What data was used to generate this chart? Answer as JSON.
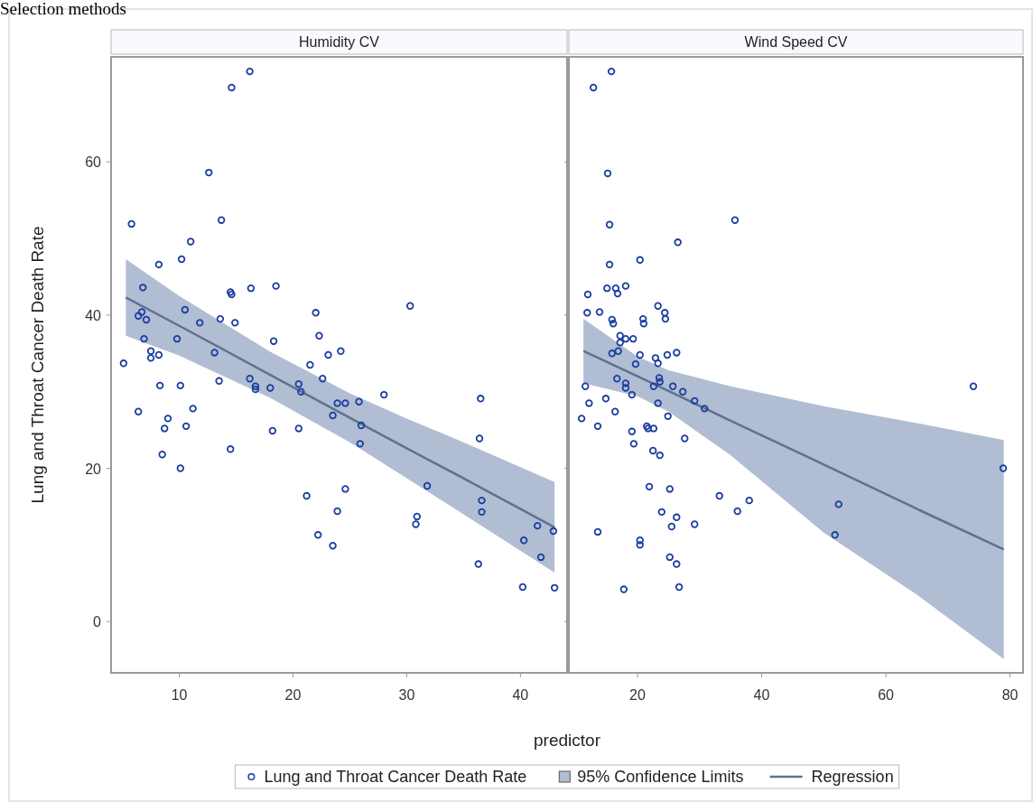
{
  "chart_data": [
    {
      "type": "scatter",
      "title": "Humidity CV",
      "xlabel": "predictor",
      "ylabel": "Lung and Throat Cancer Death Rate",
      "annotations": [
        "Selection methods",
        "95% Confidence Limits"
      ],
      "legend": "bottom",
      "grid": false,
      "xlim": [
        4,
        44.1
      ],
      "ylim": [
        -6.7,
        73.7
      ],
      "xticks": [
        10,
        20,
        30,
        40
      ],
      "yticks": [
        0,
        20,
        40,
        60
      ],
      "series": [
        {
          "name": "Regression",
          "type": "line",
          "color": "#5f7191",
          "x": [
            5.3,
            10,
            18,
            25,
            30,
            35,
            43
          ],
          "values": [
            42.3,
            38.6,
            32.2,
            26.6,
            22.6,
            18.7,
            12.3
          ],
          "lower": [
            37.3,
            34.7,
            29.2,
            23.4,
            18.7,
            14.0,
            6.4
          ],
          "upper": [
            47.3,
            42.5,
            35.2,
            29.8,
            26.5,
            23.4,
            18.2
          ]
        },
        {
          "name": "Lung and Throat Cancer Death Rate",
          "type": "scatter",
          "marker": "circle",
          "color": "#1a3ea0",
          "x": [
            5.1,
            5.8,
            6.4,
            6.4,
            6.7,
            6.8,
            6.9,
            7.1,
            7.5,
            7.5,
            8.2,
            8.2,
            8.3,
            8.5,
            8.7,
            9.0,
            9.8,
            10.1,
            10.1,
            10.2,
            10.5,
            10.6,
            11.0,
            11.2,
            11.8,
            12.6,
            13.1,
            13.7,
            13.5,
            13.6,
            14.6,
            14.5,
            14.6,
            14.5,
            14.9,
            16.2,
            16.2,
            16.3,
            16.7,
            16.7,
            18.0,
            18.2,
            18.3,
            18.5,
            20.5,
            20.7,
            20.5,
            21.2,
            21.5,
            22.0,
            22.2,
            22.3,
            22.6,
            23.1,
            23.5,
            23.5,
            23.9,
            23.9,
            24.2,
            24.6,
            24.6,
            25.8,
            26.0,
            25.9,
            28.0,
            30.3,
            30.8,
            30.9,
            31.8,
            36.5,
            36.4,
            36.6,
            36.6,
            36.3,
            40.3,
            40.2,
            41.5,
            41.8,
            42.9,
            43.0
          ],
          "values": [
            33.7,
            51.9,
            27.4,
            39.9,
            40.4,
            43.6,
            36.9,
            39.4,
            35.3,
            34.4,
            46.6,
            34.8,
            30.8,
            21.8,
            25.2,
            26.5,
            36.9,
            30.8,
            20.0,
            47.3,
            40.7,
            25.5,
            49.6,
            27.8,
            39.0,
            58.6,
            35.1,
            52.4,
            31.4,
            39.5,
            69.7,
            43.0,
            42.7,
            22.5,
            39.0,
            71.8,
            31.7,
            43.5,
            30.7,
            30.3,
            30.5,
            24.9,
            36.6,
            43.8,
            31.0,
            30.0,
            25.2,
            16.4,
            33.5,
            40.3,
            11.3,
            37.3,
            31.7,
            34.8,
            26.9,
            9.9,
            28.5,
            14.4,
            35.3,
            28.5,
            17.3,
            28.7,
            25.6,
            23.2,
            29.6,
            41.2,
            12.7,
            13.7,
            17.7,
            29.1,
            23.9,
            15.8,
            14.3,
            7.5,
            10.6,
            4.5,
            12.5,
            8.4,
            11.8,
            4.4
          ]
        }
      ]
    },
    {
      "type": "scatter",
      "title": "Wind Speed CV",
      "tick_labels": "x",
      "grid": false,
      "xlim": [
        8.95,
        82.1
      ],
      "ylim": [
        -6.7,
        73.7
      ],
      "xticks": [
        20,
        40,
        60,
        80
      ],
      "yticks": [
        0,
        20,
        40,
        60
      ],
      "series": [
        {
          "type": "line",
          "color": "#5f7191",
          "x": [
            11.3,
            20,
            25,
            35,
            50,
            65,
            79
          ],
          "values": [
            35.3,
            32.0,
            30.1,
            26.2,
            20.5,
            14.7,
            9.4
          ],
          "lower": [
            31.1,
            29.4,
            27.4,
            21.7,
            11.6,
            3.5,
            -4.9
          ],
          "upper": [
            39.5,
            34.6,
            32.8,
            30.7,
            28.1,
            25.9,
            23.7
          ]
        },
        {
          "type": "scatter",
          "marker": "circle",
          "color": "#1a3ea0",
          "x": [
            15.8,
            12.9,
            15.2,
            35.7,
            15.5,
            26.5,
            20.4,
            15.5,
            12.0,
            15.1,
            16.5,
            16.8,
            18.1,
            11.9,
            13.9,
            15.9,
            16.1,
            23.3,
            24.4,
            24.5,
            20.9,
            21.0,
            17.2,
            18.1,
            19.3,
            17.2,
            15.9,
            16.9,
            20.4,
            22.9,
            24.8,
            26.3,
            23.3,
            19.7,
            11.6,
            16.7,
            18.1,
            18.1,
            19.1,
            12.2,
            14.9,
            16.4,
            11.0,
            13.6,
            22.6,
            23.5,
            23.6,
            23.3,
            25.7,
            27.3,
            29.2,
            30.8,
            24.9,
            21.5,
            21.7,
            22.6,
            19.1,
            19.4,
            27.6,
            22.5,
            23.6,
            21.9,
            25.2,
            33.2,
            38.0,
            36.1,
            23.9,
            26.3,
            25.5,
            29.2,
            52.4,
            51.8,
            13.6,
            20.4,
            20.4,
            25.2,
            26.3,
            17.8,
            26.7,
            74.1,
            78.9
          ],
          "values": [
            71.8,
            69.7,
            58.5,
            52.4,
            51.8,
            49.5,
            47.2,
            46.6,
            42.7,
            43.5,
            43.5,
            42.8,
            43.8,
            40.3,
            40.4,
            39.4,
            38.9,
            41.2,
            40.3,
            39.5,
            39.5,
            38.9,
            37.3,
            36.9,
            36.9,
            36.4,
            35.0,
            35.3,
            34.8,
            34.4,
            34.8,
            35.1,
            33.7,
            33.6,
            30.7,
            31.7,
            31.1,
            30.5,
            29.6,
            28.5,
            29.1,
            27.4,
            26.5,
            25.5,
            30.7,
            31.8,
            31.3,
            28.5,
            30.7,
            30.0,
            28.8,
            27.8,
            26.8,
            25.5,
            25.2,
            25.2,
            24.8,
            23.2,
            23.9,
            22.3,
            21.7,
            17.6,
            17.3,
            16.4,
            15.8,
            14.4,
            14.3,
            13.6,
            12.4,
            12.7,
            15.3,
            11.3,
            11.7,
            10.6,
            10.0,
            8.4,
            7.5,
            4.2,
            4.5,
            30.7,
            20.0
          ]
        }
      ]
    }
  ]
}
